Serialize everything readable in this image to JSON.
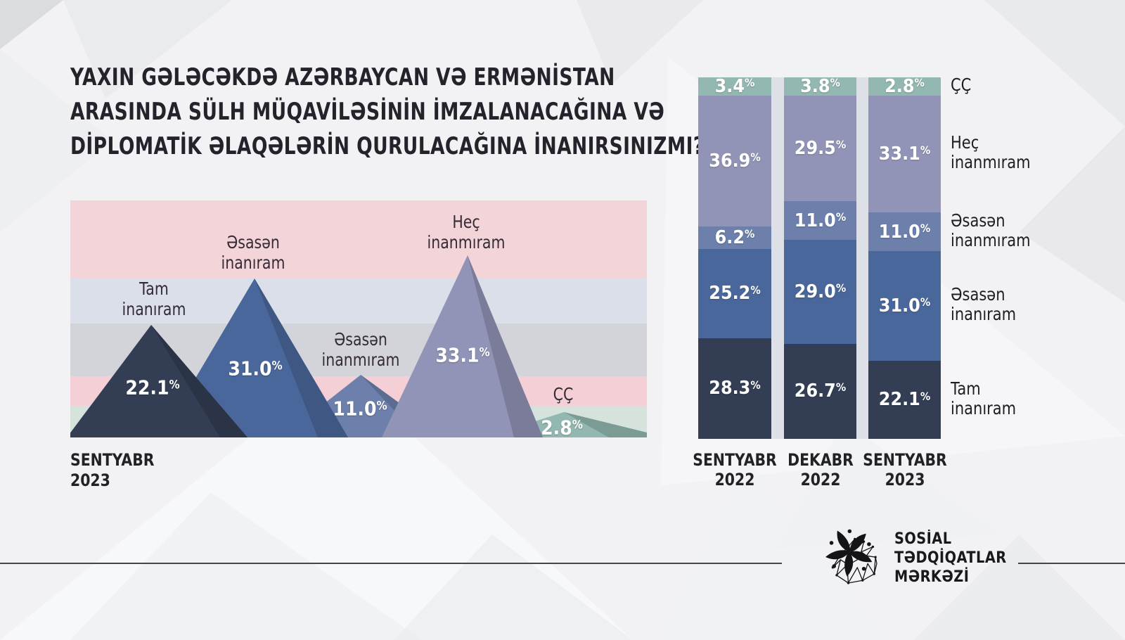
{
  "units": {
    "percent": "%"
  },
  "colors": {
    "tam_inaniram": "#333e55",
    "esasen_inaniram": "#4a679c",
    "esasen_inanmiram": "#6d80ab",
    "hec_inanmiram": "#9194b6",
    "cc": "#93b8b1",
    "band_pink": "#f3d4d9",
    "band_lavender": "#dbdfea",
    "band_gray": "#d2d4d9",
    "band_pink2": "#f4cfd5",
    "band_green": "#d6e3dd"
  },
  "title": {
    "line1": "YAXIN GƏLƏCƏKDƏ AZƏRBAYCAN VƏ ERMƏNİSTAN",
    "line2": "ARASINDA SÜLH MÜQAVİLƏSİNİN İMZALANACAĞINA VƏ",
    "line3": "DİPLOMATİK ƏLAQƏLƏRİN QURULACAĞINA İNANIRSINIZMI?"
  },
  "left_chart": {
    "period": [
      "SENTYABR",
      "2023"
    ],
    "mountains": [
      {
        "id": "tam-inaniram",
        "key": "tam_inaniram",
        "label": [
          "Tam",
          "inanıram"
        ],
        "display": "22.1"
      },
      {
        "id": "esasen-inaniram",
        "key": "esasen_inaniram",
        "label": [
          "Əsasən",
          "inanıram"
        ],
        "display": "31.0"
      },
      {
        "id": "esasen-inanmiram",
        "key": "esasen_inanmiram",
        "label": [
          "Əsasən",
          "inanmıram"
        ],
        "display": "11.0"
      },
      {
        "id": "hec-inanmiram",
        "key": "hec_inanmiram",
        "label": [
          "Heç",
          "inanmıram"
        ],
        "display": "33.1"
      },
      {
        "id": "cc",
        "key": "cc",
        "label": [
          "ÇÇ"
        ],
        "display": "2.8"
      }
    ]
  },
  "right_chart": {
    "columns": [
      {
        "label": [
          "SENTYABR",
          "2022"
        ]
      },
      {
        "label": [
          "DEKABR",
          "2022"
        ]
      },
      {
        "label": [
          "SENTYABR",
          "2023"
        ]
      }
    ],
    "legend": [
      [
        "ÇÇ"
      ],
      [
        "Heç",
        "inanmıram"
      ],
      [
        "Əsasən",
        "inanmıram"
      ],
      [
        "Əsasən",
        "inanıram"
      ],
      [
        "Tam",
        "inanıram"
      ]
    ],
    "series": [
      {
        "name": "ÇÇ",
        "key": "cc",
        "values": [
          3.4,
          3.8,
          2.8
        ],
        "display": [
          "3.4",
          "3.8",
          "2.8"
        ]
      },
      {
        "name": "Heç inanmıram",
        "key": "hec_inanmiram",
        "values": [
          36.9,
          29.5,
          33.1
        ],
        "display": [
          "36.9",
          "29.5",
          "33.1"
        ]
      },
      {
        "name": "Əsasən inanmıram",
        "key": "esasen_inanmiram",
        "values": [
          6.2,
          11.0,
          11.0
        ],
        "display": [
          "6.2",
          "11.0",
          "11.0"
        ]
      },
      {
        "name": "Əsasən inanıram",
        "key": "esasen_inaniram",
        "values": [
          25.2,
          29.0,
          31.0
        ],
        "display": [
          "25.2",
          "29.0",
          "31.0"
        ]
      },
      {
        "name": "Tam inanıram",
        "key": "tam_inaniram",
        "values": [
          28.3,
          26.7,
          22.1
        ],
        "display": [
          "28.3",
          "26.7",
          "22.1"
        ]
      }
    ]
  },
  "footer": {
    "org_line1": "SOSİAL",
    "org_line2": "TƏDQİQATLAR",
    "org_line3": "MƏRKƏZİ"
  },
  "chart_data": [
    {
      "type": "area",
      "title": "YAXIN GƏLƏCƏKDƏ AZƏRBAYCAN VƏ ERMƏNİSTAN ARASINDA SÜLH MÜQAVİLƏSİNİN İMZALANACAĞINA VƏ DİPLOMATİK ƏLAQƏLƏRİN QURULACAĞINA İNANIRSINIZMI?",
      "subtitle": "SENTYABR 2023",
      "categories": [
        "Tam inanıram",
        "Əsasən inanıram",
        "Əsasən inanmıram",
        "Heç inanmıram",
        "ÇÇ"
      ],
      "values": [
        22.1,
        31.0,
        11.0,
        33.1,
        2.8
      ],
      "unit": "%",
      "grid": false,
      "legend_position": "none"
    },
    {
      "type": "bar",
      "stacked": true,
      "categories": [
        "SENTYABR 2022",
        "DEKABR 2022",
        "SENTYABR 2023"
      ],
      "series": [
        {
          "name": "ÇÇ",
          "values": [
            3.4,
            3.8,
            2.8
          ]
        },
        {
          "name": "Heç inanmıram",
          "values": [
            36.9,
            29.5,
            33.1
          ]
        },
        {
          "name": "Əsasən inanmıram",
          "values": [
            6.2,
            11.0,
            11.0
          ]
        },
        {
          "name": "Əsasən inanıram",
          "values": [
            25.2,
            29.0,
            31.0
          ]
        },
        {
          "name": "Tam inanıram",
          "values": [
            28.3,
            26.7,
            22.1
          ]
        }
      ],
      "unit": "%",
      "ylim": [
        0,
        100
      ],
      "grid": false,
      "legend_position": "right"
    }
  ]
}
